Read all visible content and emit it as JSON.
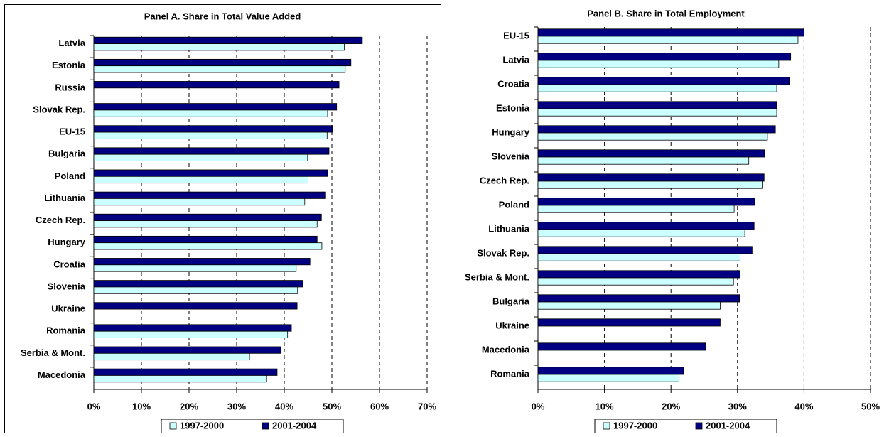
{
  "chart_data": [
    {
      "type": "bar",
      "orientation": "horizontal",
      "title": "Panel A. Share in Total Value Added",
      "categories": [
        "Latvia",
        "Estonia",
        "Russia",
        "Slovak Rep.",
        "EU-15",
        "Bulgaria",
        "Poland",
        "Lithuania",
        "Czech Rep.",
        "Hungary",
        "Croatia",
        "Slovenia",
        "Ukraine",
        "Romania",
        "Serbia & Mont.",
        "Macedonia"
      ],
      "series": [
        {
          "name": "1997-2000",
          "color": "#ccffff",
          "values": [
            52.6,
            52.8,
            null,
            49.1,
            49.0,
            44.9,
            45.0,
            44.3,
            46.9,
            47.9,
            42.5,
            42.8,
            null,
            40.7,
            32.7,
            36.3
          ]
        },
        {
          "name": "2001-2004",
          "color": "#000080",
          "values": [
            56.4,
            54.0,
            51.5,
            51.0,
            50.1,
            49.4,
            49.1,
            48.7,
            47.8,
            46.9,
            45.4,
            43.9,
            42.7,
            41.5,
            39.3,
            38.5
          ]
        }
      ],
      "xlim": [
        0,
        70
      ],
      "xticks": [
        {
          "value": 0,
          "label": "0%"
        },
        {
          "value": 10,
          "label": "10%"
        },
        {
          "value": 20,
          "label": "20%"
        },
        {
          "value": 30,
          "label": "30%"
        },
        {
          "value": 40,
          "label": "40%"
        },
        {
          "value": 50,
          "label": "50%"
        },
        {
          "value": 60,
          "label": "60%"
        },
        {
          "value": 70,
          "label": "70%"
        }
      ],
      "grid": true
    },
    {
      "type": "bar",
      "orientation": "horizontal",
      "title": "Panel B. Share in Total Employment",
      "categories": [
        "EU-15",
        "Latvia",
        "Croatia",
        "Estonia",
        "Hungary",
        "Slovenia",
        "Czech Rep.",
        "Poland",
        "Lithuania",
        "Slovak Rep.",
        "Serbia & Mont.",
        "Bulgaria",
        "Ukraine",
        "Macedonia",
        "Romania"
      ],
      "series": [
        {
          "name": "1997-2000",
          "color": "#ccffff",
          "values": [
            39.1,
            36.2,
            35.9,
            35.9,
            34.5,
            31.7,
            33.7,
            29.5,
            31.1,
            30.4,
            29.4,
            27.4,
            null,
            null,
            21.2
          ]
        },
        {
          "name": "2001-2004",
          "color": "#000080",
          "values": [
            40.0,
            38.0,
            37.8,
            35.9,
            35.7,
            34.1,
            34.0,
            32.6,
            32.5,
            32.2,
            30.4,
            30.3,
            27.4,
            25.2,
            21.9
          ]
        }
      ],
      "xlim": [
        0,
        50
      ],
      "xticks": [
        {
          "value": 0,
          "label": "0%"
        },
        {
          "value": 10,
          "label": "10%"
        },
        {
          "value": 20,
          "label": "20%"
        },
        {
          "value": 30,
          "label": "30%"
        },
        {
          "value": 40,
          "label": "40%"
        },
        {
          "value": 50,
          "label": "50%"
        }
      ],
      "grid": true
    }
  ]
}
